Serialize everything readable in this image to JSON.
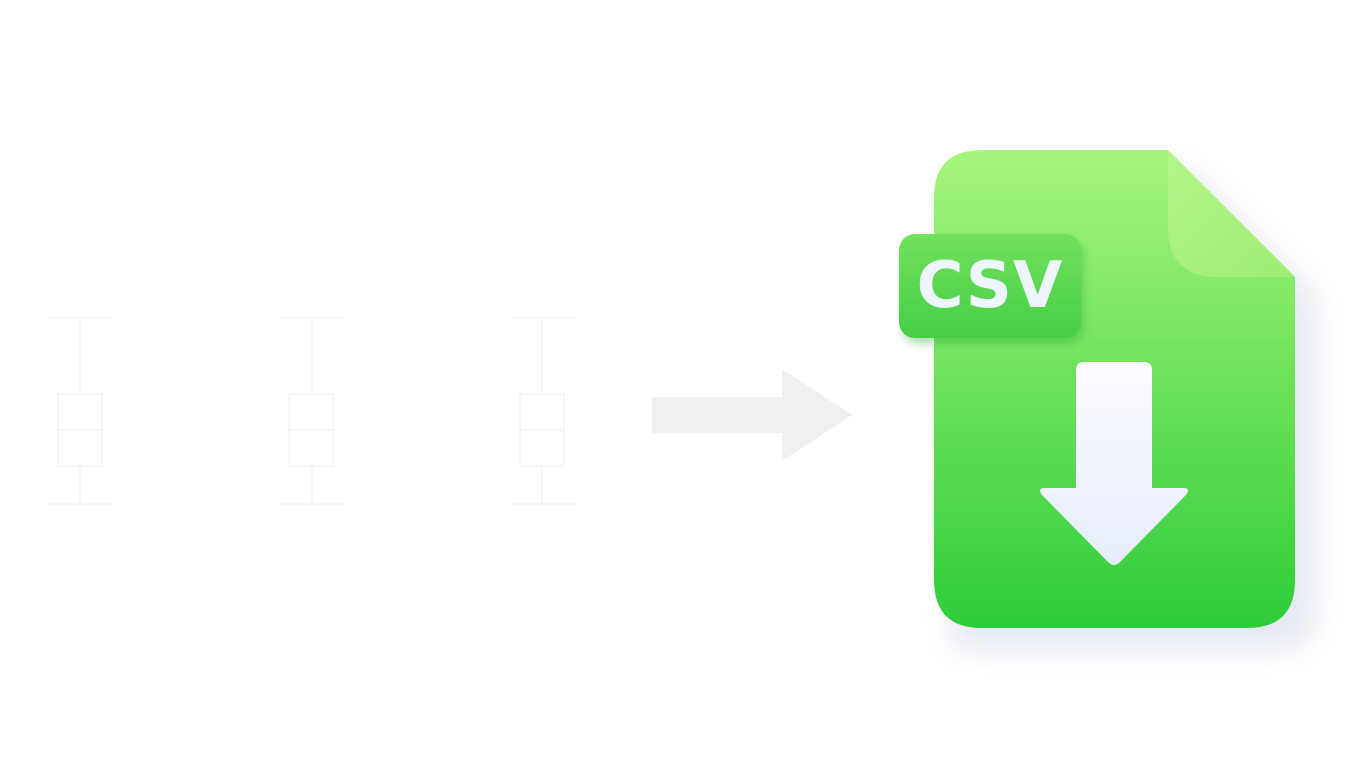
{
  "illustration": {
    "boxplot_count": 3,
    "arrow_direction": "right",
    "file_badge_label": "CSV",
    "file_action_icon": "download-arrow-icon",
    "colors": {
      "background": "#ffffff",
      "boxplot_stroke": "#f1f1f1",
      "arrow_fill": "#f0f0f0",
      "file_gradient_top": "#a7f57d",
      "file_gradient_bottom": "#2ecc3a",
      "badge_gradient_top": "#72e05c",
      "badge_gradient_bottom": "#45cf45",
      "badge_text": "#eef7ff",
      "download_arrow_top": "#fbfcff",
      "download_arrow_bottom": "#e6ecfa"
    }
  }
}
